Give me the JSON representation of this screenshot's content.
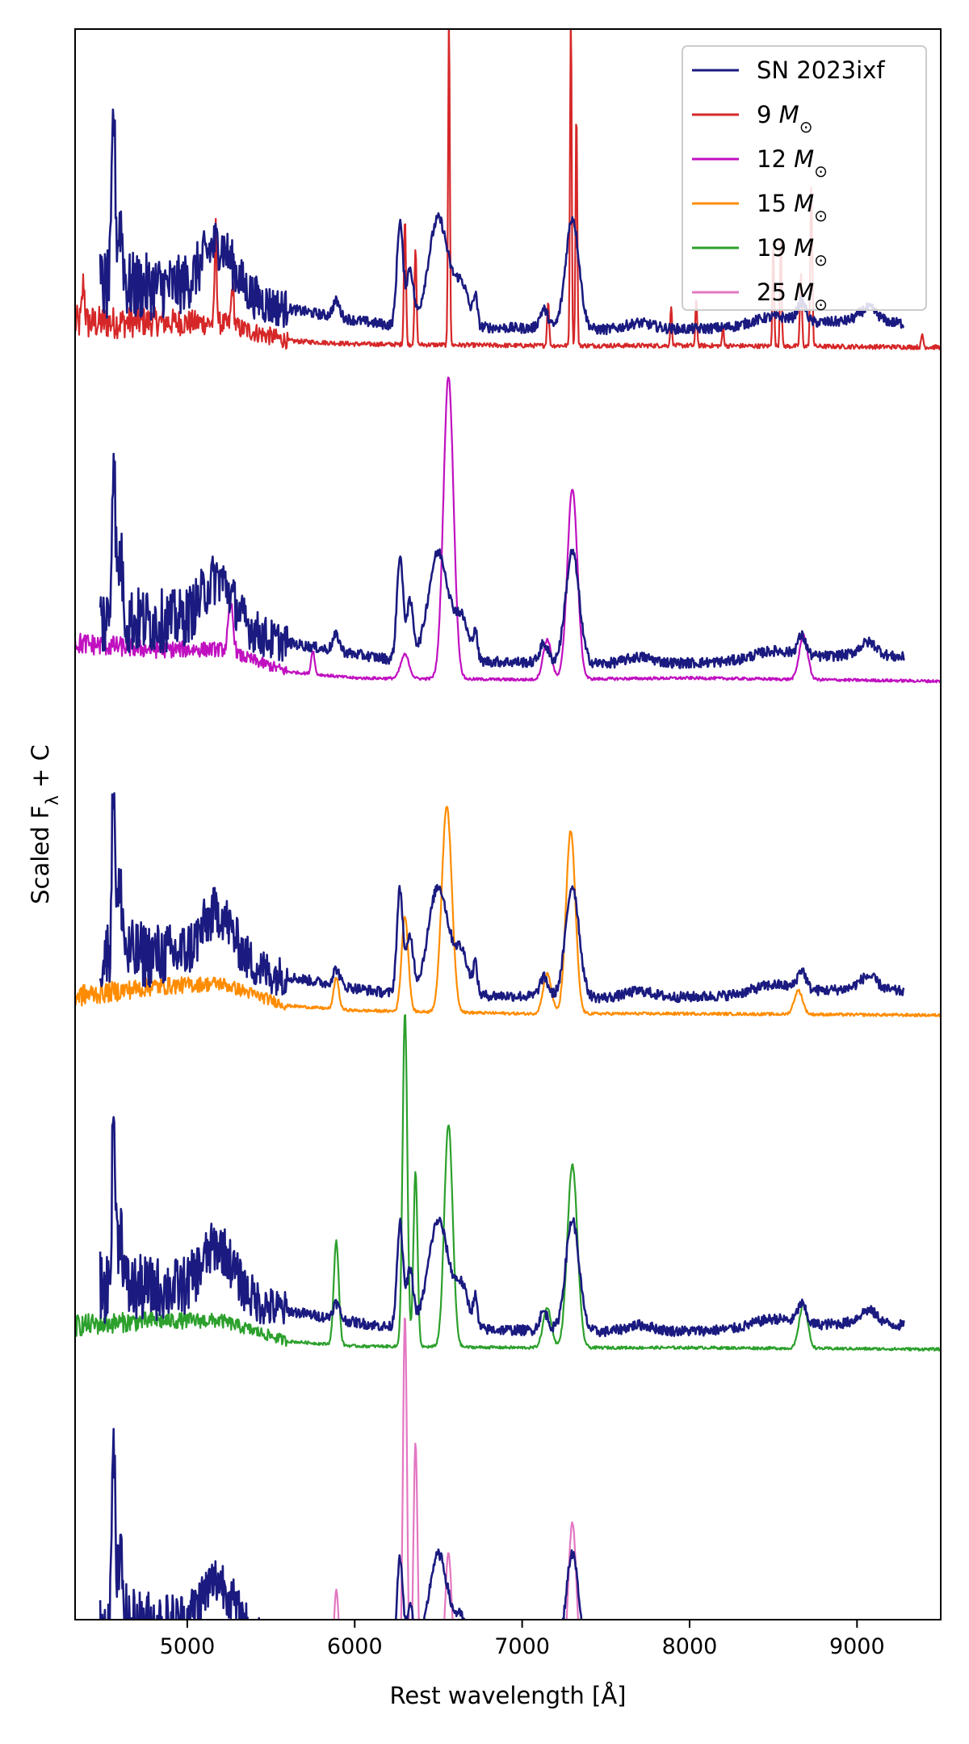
{
  "chart_data": {
    "type": "line",
    "xlabel": "Rest wavelength [Å]",
    "ylabel_parts": [
      "Scaled F",
      "λ",
      " + C"
    ],
    "xlim": [
      4330,
      9500
    ],
    "xticks": [
      5000,
      6000,
      7000,
      8000,
      9000
    ],
    "xtick_labels": [
      "5000",
      "6000",
      "7000",
      "8000",
      "9000"
    ],
    "ylim": [
      0,
      100
    ],
    "yticks_shown": false,
    "legend": {
      "position": "top-right",
      "entries": [
        {
          "label_parts": [
            "SN 2023ixf",
            ""
          ],
          "color": "#1a1a80"
        },
        {
          "label_parts": [
            "9 ",
            "M",
            "⊙"
          ],
          "color": "#d62728"
        },
        {
          "label_parts": [
            "12 ",
            "M",
            "⊙"
          ],
          "color": "#c010c0"
        },
        {
          "label_parts": [
            "15 ",
            "M",
            "⊙"
          ],
          "color": "#ff8c00"
        },
        {
          "label_parts": [
            "19 ",
            "M",
            "⊙"
          ],
          "color": "#2ca02c"
        },
        {
          "label_parts": [
            "25 ",
            "M",
            "⊙"
          ],
          "color": "#e377c2"
        }
      ]
    },
    "observed": {
      "name": "SN 2023ixf",
      "color": "#1a1a80",
      "x_range": [
        4480,
        9280
      ],
      "continuum": [
        [
          4480,
          3.0
        ],
        [
          4800,
          3.0
        ],
        [
          5000,
          3.0
        ],
        [
          5200,
          3.2
        ],
        [
          5500,
          1.8
        ],
        [
          6000,
          0.9
        ],
        [
          6200,
          0.6
        ],
        [
          6500,
          0.5
        ],
        [
          7000,
          0.4
        ],
        [
          7500,
          0.3
        ],
        [
          8000,
          0.35
        ],
        [
          8500,
          0.5
        ],
        [
          9000,
          0.9
        ],
        [
          9280,
          0.7
        ]
      ],
      "features": [
        {
          "center": 4560,
          "width": 10,
          "height": 11
        },
        {
          "center": 4600,
          "width": 15,
          "height": 4
        },
        {
          "center": 5180,
          "width": 90,
          "height": 2.5
        },
        {
          "center": 5890,
          "width": 20,
          "height": 1.0
        },
        {
          "center": 6270,
          "width": 18,
          "height": 6.5
        },
        {
          "center": 6330,
          "width": 20,
          "height": 3.5
        },
        {
          "center": 6500,
          "width": 60,
          "height": 6.8
        },
        {
          "center": 6640,
          "width": 40,
          "height": 2.5
        },
        {
          "center": 6720,
          "width": 12,
          "height": 1.8
        },
        {
          "center": 7130,
          "width": 25,
          "height": 1.2
        },
        {
          "center": 7300,
          "width": 40,
          "height": 7.0
        },
        {
          "center": 7700,
          "width": 80,
          "height": 0.4
        },
        {
          "center": 8500,
          "width": 120,
          "height": 0.6
        },
        {
          "center": 8670,
          "width": 25,
          "height": 1.2
        },
        {
          "center": 9070,
          "width": 50,
          "height": 0.8
        }
      ],
      "noise_blue": 1.8
    },
    "series": [
      {
        "name": "9 M⊙",
        "color": "#d62728",
        "offset": 80.0,
        "x_range": [
          4330,
          9500
        ],
        "continuum": [
          [
            4330,
            1.5
          ],
          [
            4800,
            1.6
          ],
          [
            5200,
            1.5
          ],
          [
            5600,
            0.4
          ],
          [
            6000,
            0.2
          ],
          [
            7000,
            0.1
          ],
          [
            8000,
            0.1
          ],
          [
            9500,
            0.0
          ]
        ],
        "features": [
          {
            "center": 4380,
            "width": 8,
            "height": 2.5
          },
          {
            "center": 5170,
            "width": 6,
            "height": 6.0
          },
          {
            "center": 5270,
            "width": 8,
            "height": 2.5
          },
          {
            "center": 6300,
            "width": 6,
            "height": 8.0
          },
          {
            "center": 6363,
            "width": 6,
            "height": 6.0
          },
          {
            "center": 6563,
            "width": 5,
            "height": 21.0
          },
          {
            "center": 7155,
            "width": 6,
            "height": 2.8
          },
          {
            "center": 7291,
            "width": 5,
            "height": 21.0
          },
          {
            "center": 7324,
            "width": 5,
            "height": 15.0
          },
          {
            "center": 7890,
            "width": 5,
            "height": 2.5
          },
          {
            "center": 8040,
            "width": 5,
            "height": 3.0
          },
          {
            "center": 8200,
            "width": 5,
            "height": 1.2
          },
          {
            "center": 8500,
            "width": 5,
            "height": 6.5
          },
          {
            "center": 8545,
            "width": 5,
            "height": 7.0
          },
          {
            "center": 8665,
            "width": 6,
            "height": 4.5
          },
          {
            "center": 8727,
            "width": 6,
            "height": 10.0
          },
          {
            "center": 9390,
            "width": 6,
            "height": 0.8
          }
        ],
        "noise_blue": 0.8
      },
      {
        "name": "12 M⊙",
        "color": "#c010c0",
        "offset": 59.0,
        "x_range": [
          4330,
          9500
        ],
        "continuum": [
          [
            4330,
            2.4
          ],
          [
            4800,
            2.0
          ],
          [
            5200,
            2.0
          ],
          [
            5600,
            0.6
          ],
          [
            6000,
            0.2
          ],
          [
            7000,
            0.1
          ],
          [
            8000,
            0.2
          ],
          [
            9500,
            0.0
          ]
        ],
        "features": [
          {
            "center": 5260,
            "width": 15,
            "height": 3.0
          },
          {
            "center": 5750,
            "width": 10,
            "height": 1.5
          },
          {
            "center": 6300,
            "width": 25,
            "height": 1.5
          },
          {
            "center": 6560,
            "width": 30,
            "height": 19.0
          },
          {
            "center": 7150,
            "width": 25,
            "height": 2.5
          },
          {
            "center": 7300,
            "width": 30,
            "height": 12.0
          },
          {
            "center": 8680,
            "width": 25,
            "height": 2.8
          }
        ],
        "noise_blue": 0.5
      },
      {
        "name": "15 M⊙",
        "color": "#ff8c00",
        "offset": 38.0,
        "x_range": [
          4330,
          9500
        ],
        "continuum": [
          [
            4330,
            1.2
          ],
          [
            4800,
            1.8
          ],
          [
            5200,
            2.0
          ],
          [
            5600,
            0.6
          ],
          [
            6000,
            0.3
          ],
          [
            7000,
            0.1
          ],
          [
            8000,
            0.1
          ],
          [
            9500,
            0.0
          ]
        ],
        "features": [
          {
            "center": 5890,
            "width": 15,
            "height": 2.0
          },
          {
            "center": 6300,
            "width": 20,
            "height": 6.0
          },
          {
            "center": 6550,
            "width": 30,
            "height": 13.0
          },
          {
            "center": 7150,
            "width": 25,
            "height": 2.5
          },
          {
            "center": 7290,
            "width": 28,
            "height": 11.5
          },
          {
            "center": 8650,
            "width": 25,
            "height": 1.5
          }
        ],
        "noise_blue": 0.5
      },
      {
        "name": "19 M⊙",
        "color": "#2ca02c",
        "offset": 17.0,
        "x_range": [
          4330,
          9500
        ],
        "continuum": [
          [
            4330,
            1.5
          ],
          [
            4800,
            1.8
          ],
          [
            5200,
            1.8
          ],
          [
            5600,
            0.5
          ],
          [
            6000,
            0.2
          ],
          [
            7000,
            0.1
          ],
          [
            8000,
            0.1
          ],
          [
            9500,
            0.0
          ]
        ],
        "features": [
          {
            "center": 5890,
            "width": 15,
            "height": 6.5
          },
          {
            "center": 6300,
            "width": 14,
            "height": 21.0
          },
          {
            "center": 6363,
            "width": 12,
            "height": 11.0
          },
          {
            "center": 6560,
            "width": 25,
            "height": 14.0
          },
          {
            "center": 7150,
            "width": 25,
            "height": 2.5
          },
          {
            "center": 7300,
            "width": 30,
            "height": 11.5
          },
          {
            "center": 8680,
            "width": 25,
            "height": 2.8
          }
        ],
        "noise_blue": 0.5
      },
      {
        "name": "25 M⊙",
        "color": "#e377c2",
        "offset": -4.0,
        "x_range": [
          4330,
          9500
        ],
        "continuum": [
          [
            4330,
            1.5
          ],
          [
            4800,
            1.8
          ],
          [
            5200,
            1.8
          ],
          [
            5600,
            0.6
          ],
          [
            6000,
            0.2
          ],
          [
            7000,
            0.1
          ],
          [
            8000,
            0.1
          ],
          [
            9500,
            0.0
          ]
        ],
        "features": [
          {
            "center": 5890,
            "width": 15,
            "height": 5.5
          },
          {
            "center": 6300,
            "width": 12,
            "height": 23.0
          },
          {
            "center": 6363,
            "width": 12,
            "height": 15.0
          },
          {
            "center": 6560,
            "width": 20,
            "height": 8.0
          },
          {
            "center": 7150,
            "width": 20,
            "height": 1.5
          },
          {
            "center": 7300,
            "width": 25,
            "height": 10.0
          }
        ],
        "noise_blue": 0.5
      }
    ]
  }
}
